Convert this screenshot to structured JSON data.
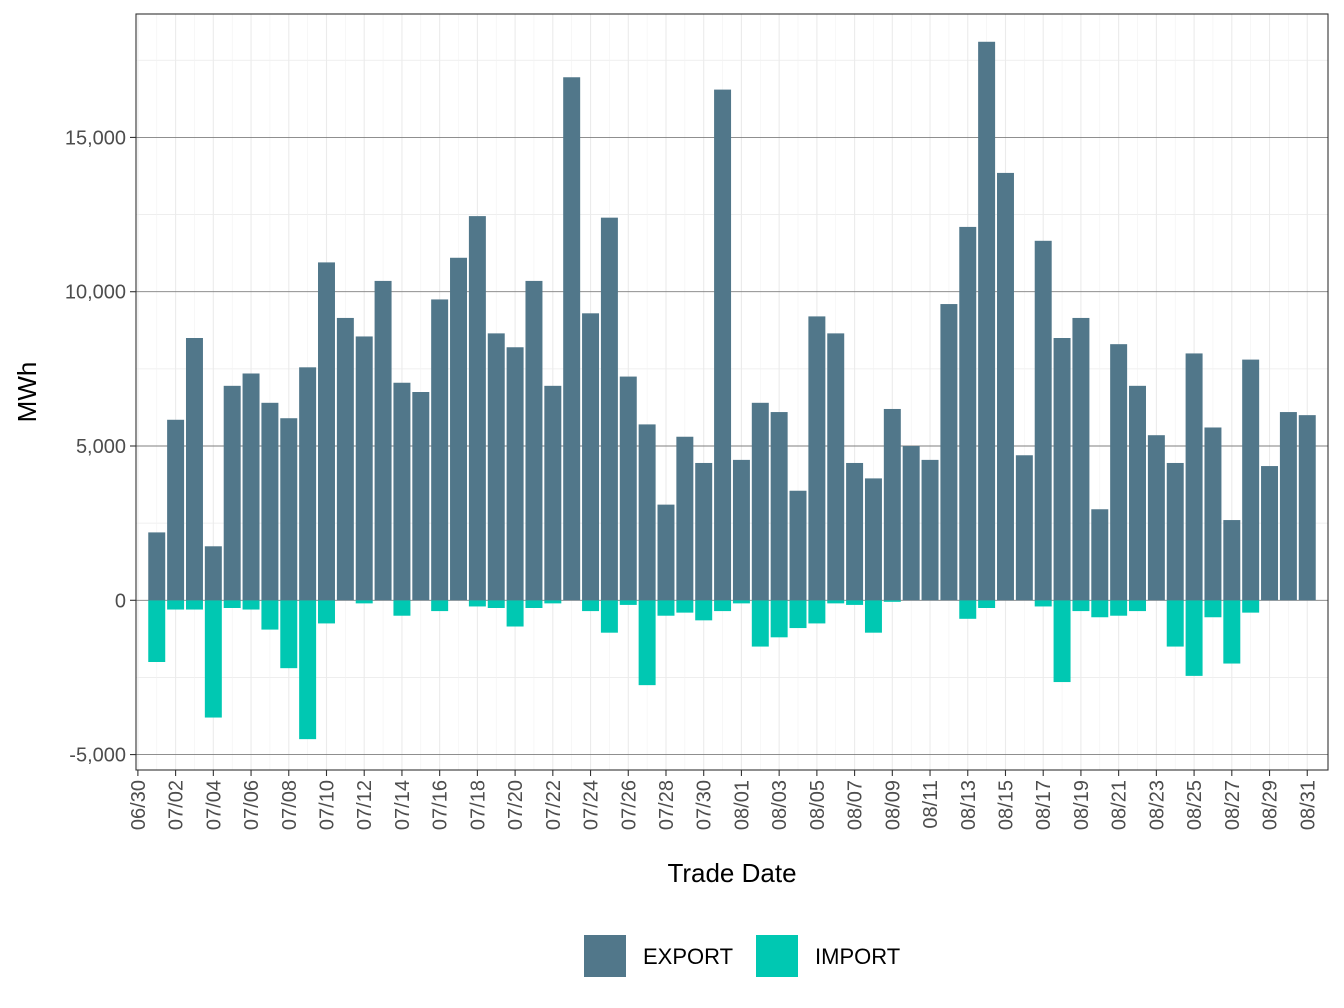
{
  "chart_data": {
    "type": "bar",
    "xlabel": "Trade Date",
    "ylabel": "MWh",
    "ylim": [
      -5500,
      19000
    ],
    "yticks": [
      -5000,
      0,
      5000,
      10000,
      15000
    ],
    "ytick_labels": [
      "-5,000",
      "0",
      "5,000",
      "10,000",
      "15,000"
    ],
    "xtick_labels": [
      "06/30",
      "07/02",
      "07/04",
      "07/06",
      "07/08",
      "07/10",
      "07/12",
      "07/14",
      "07/16",
      "07/18",
      "07/20",
      "07/22",
      "07/24",
      "07/26",
      "07/28",
      "07/30",
      "08/01",
      "08/03",
      "08/05",
      "08/07",
      "08/09",
      "08/11",
      "08/13",
      "08/15",
      "08/17",
      "08/19",
      "08/21",
      "08/23",
      "08/25",
      "08/27",
      "08/29",
      "08/31"
    ],
    "categories": [
      "07/01",
      "07/02",
      "07/03",
      "07/04",
      "07/05",
      "07/06",
      "07/07",
      "07/08",
      "07/09",
      "07/10",
      "07/11",
      "07/12",
      "07/13",
      "07/14",
      "07/15",
      "07/16",
      "07/17",
      "07/18",
      "07/19",
      "07/20",
      "07/21",
      "07/22",
      "07/23",
      "07/24",
      "07/25",
      "07/26",
      "07/27",
      "07/28",
      "07/29",
      "07/30",
      "07/31",
      "08/01",
      "08/02",
      "08/03",
      "08/04",
      "08/05",
      "08/06",
      "08/07",
      "08/08",
      "08/09",
      "08/10",
      "08/11",
      "08/12",
      "08/13",
      "08/14",
      "08/15",
      "08/16",
      "08/17",
      "08/18",
      "08/19",
      "08/20",
      "08/21",
      "08/22",
      "08/23",
      "08/24",
      "08/25",
      "08/26",
      "08/27",
      "08/28",
      "08/29",
      "08/30",
      "08/31"
    ],
    "series": [
      {
        "name": "EXPORT",
        "color": "#51778a",
        "values": [
          2200,
          5850,
          8500,
          1750,
          6950,
          7350,
          6400,
          5900,
          7550,
          10950,
          9150,
          8550,
          10350,
          7050,
          6750,
          9750,
          11100,
          12450,
          8650,
          8200,
          10350,
          6950,
          16950,
          9300,
          12400,
          7250,
          5700,
          3100,
          5300,
          4450,
          16550,
          4550,
          6400,
          6100,
          3550,
          9200,
          8650,
          4450,
          3950,
          6200,
          5000,
          4550,
          9600,
          12100,
          18100,
          13850,
          4700,
          11650,
          8500,
          9150,
          2950,
          8300,
          6950,
          5350,
          4450,
          8000,
          5600,
          2600,
          7800,
          4350,
          6100,
          6000
        ]
      },
      {
        "name": "IMPORT",
        "color": "#00c8b2",
        "values": [
          -2000,
          -300,
          -300,
          -3800,
          -250,
          -300,
          -950,
          -2200,
          -4500,
          -750,
          0,
          -100,
          0,
          -500,
          0,
          -350,
          0,
          -200,
          -250,
          -850,
          -250,
          -100,
          0,
          -350,
          -1050,
          -150,
          -2750,
          -500,
          -400,
          -650,
          -350,
          -100,
          -1500,
          -1200,
          -900,
          -750,
          -100,
          -150,
          -1050,
          -50,
          0,
          0,
          0,
          -600,
          -250,
          0,
          0,
          -200,
          -2650,
          -350,
          -550,
          -500,
          -350,
          0,
          -1500,
          -2450,
          -550,
          -2050,
          -400,
          0,
          0,
          0
        ]
      }
    ],
    "legend": {
      "position": "bottom",
      "entries": [
        "EXPORT",
        "IMPORT"
      ]
    },
    "grid": true
  }
}
